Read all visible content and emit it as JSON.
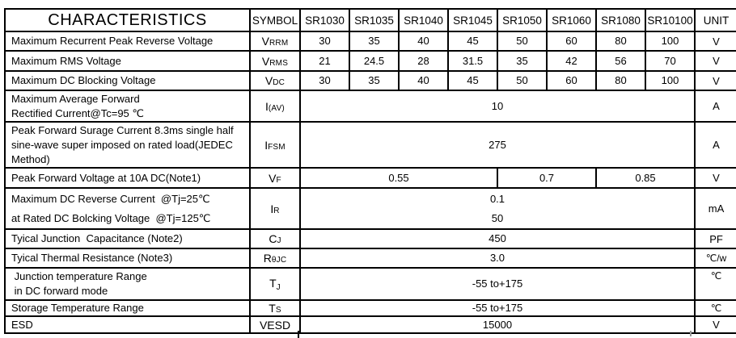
{
  "colors": {
    "border": "#000000",
    "background": "#ffffff",
    "text": "#000000"
  },
  "table": {
    "header": {
      "characteristics": "CHARACTERISTICS",
      "symbol": "SYMBOL",
      "parts": [
        "SR1030",
        "SR1035",
        "SR1040",
        "SR1045",
        "SR1050",
        "SR1060",
        "SR1080",
        "SR10100"
      ],
      "unit": "UNIT"
    },
    "rows": [
      {
        "id": "vrrm",
        "characteristic": [
          "Maximum Recurrent Peak Reverse Voltage"
        ],
        "symbol": {
          "main": "V",
          "sub": "RRM",
          "sub_position": "baseline"
        },
        "values": [
          {
            "lines": [
              "30"
            ],
            "span": 1
          },
          {
            "lines": [
              "35"
            ],
            "span": 1
          },
          {
            "lines": [
              "40"
            ],
            "span": 1
          },
          {
            "lines": [
              "45"
            ],
            "span": 1
          },
          {
            "lines": [
              "50"
            ],
            "span": 1
          },
          {
            "lines": [
              "60"
            ],
            "span": 1
          },
          {
            "lines": [
              "80"
            ],
            "span": 1
          },
          {
            "lines": [
              "100"
            ],
            "span": 1
          }
        ],
        "unit": "V"
      },
      {
        "id": "vrms",
        "characteristic": [
          "Maximum RMS Voltage"
        ],
        "symbol": {
          "main": "V",
          "sub": "RMS",
          "sub_position": "baseline"
        },
        "values": [
          {
            "lines": [
              "21"
            ],
            "span": 1
          },
          {
            "lines": [
              "24.5"
            ],
            "span": 1
          },
          {
            "lines": [
              "28"
            ],
            "span": 1
          },
          {
            "lines": [
              "31.5"
            ],
            "span": 1
          },
          {
            "lines": [
              "35"
            ],
            "span": 1
          },
          {
            "lines": [
              "42"
            ],
            "span": 1
          },
          {
            "lines": [
              "56"
            ],
            "span": 1
          },
          {
            "lines": [
              "70"
            ],
            "span": 1
          }
        ],
        "unit": "V"
      },
      {
        "id": "vdc",
        "characteristic": [
          "Maximum DC Blocking Voltage"
        ],
        "symbol": {
          "main": "V",
          "sub": "DC",
          "sub_position": "baseline"
        },
        "values": [
          {
            "lines": [
              "30"
            ],
            "span": 1
          },
          {
            "lines": [
              "35"
            ],
            "span": 1
          },
          {
            "lines": [
              "40"
            ],
            "span": 1
          },
          {
            "lines": [
              "45"
            ],
            "span": 1
          },
          {
            "lines": [
              "50"
            ],
            "span": 1
          },
          {
            "lines": [
              "60"
            ],
            "span": 1
          },
          {
            "lines": [
              "80"
            ],
            "span": 1
          },
          {
            "lines": [
              "100"
            ],
            "span": 1
          }
        ],
        "unit": "V"
      },
      {
        "id": "iav",
        "characteristic": [
          "Maximum Average Forward",
          "Rectified Current@Tc=95 ℃"
        ],
        "symbol": {
          "main": "I",
          "sub": "(AV)",
          "sub_position": "baseline"
        },
        "values": [
          {
            "lines": [
              "10"
            ],
            "span": 8
          }
        ],
        "unit": "A"
      },
      {
        "id": "ifsm",
        "characteristic": [
          "Peak Forward Surage Current 8.3ms single half",
          "sine-wave super imposed on rated load(JEDEC",
          "Method)"
        ],
        "symbol": {
          "main": "I",
          "sub": "FSM",
          "sub_position": "baseline"
        },
        "values": [
          {
            "lines": [
              "275"
            ],
            "span": 8
          }
        ],
        "unit": "A"
      },
      {
        "id": "vf",
        "characteristic": [
          "Peak Forward Voltage at 10A DC(Note1)"
        ],
        "symbol": {
          "main": "V",
          "sub": "F",
          "sub_position": "baseline"
        },
        "values": [
          {
            "lines": [
              "0.55"
            ],
            "span": 4
          },
          {
            "lines": [
              "0.7"
            ],
            "span": 2
          },
          {
            "lines": [
              "0.85"
            ],
            "span": 2
          }
        ],
        "unit": "V"
      },
      {
        "id": "ir",
        "characteristic": [
          "Maximum DC Reverse Current  @Tj=25℃",
          "at Rated DC Bolcking Voltage  @Tj=125℃"
        ],
        "symbol": {
          "main": "I",
          "sub": "R",
          "sub_position": "baseline"
        },
        "values": [
          {
            "lines": [
              "0.1",
              "50"
            ],
            "span": 8
          }
        ],
        "unit": "mA"
      },
      {
        "id": "cj",
        "characteristic": [
          "Tyical Junction  Capacitance (Note2)"
        ],
        "symbol": {
          "main": "C",
          "sub": "J",
          "sub_position": "baseline"
        },
        "values": [
          {
            "lines": [
              "450"
            ],
            "span": 8
          }
        ],
        "unit": "PF"
      },
      {
        "id": "rejc",
        "characteristic": [
          "Tyical Thermal Resistance (Note3)"
        ],
        "symbol": {
          "main": "R",
          "sub": "θJC",
          "sub_position": "baseline"
        },
        "values": [
          {
            "lines": [
              "3.0"
            ],
            "span": 8
          }
        ],
        "unit": "℃/w"
      },
      {
        "id": "tj",
        "characteristic": [
          " Junction temperature Range",
          " in DC forward mode"
        ],
        "symbol": {
          "main": "T",
          "sub": "J",
          "sub_position": "sub"
        },
        "values": [
          {
            "lines": [
              "-55 to+175"
            ],
            "span": 8
          }
        ],
        "unit": "℃"
      },
      {
        "id": "ts",
        "characteristic": [
          "Storage Temperature Range"
        ],
        "symbol": {
          "main": "T",
          "sub": "S",
          "sub_position": "baseline"
        },
        "values": [
          {
            "lines": [
              "-55 to+175"
            ],
            "span": 8
          }
        ],
        "unit": "℃"
      },
      {
        "id": "vesd",
        "characteristic": [
          "ESD"
        ],
        "symbol": {
          "main": "VESD",
          "sub": "",
          "sub_position": "baseline"
        },
        "values": [
          {
            "lines": [
              "15000"
            ],
            "span": 8
          }
        ],
        "unit": "V"
      }
    ]
  }
}
